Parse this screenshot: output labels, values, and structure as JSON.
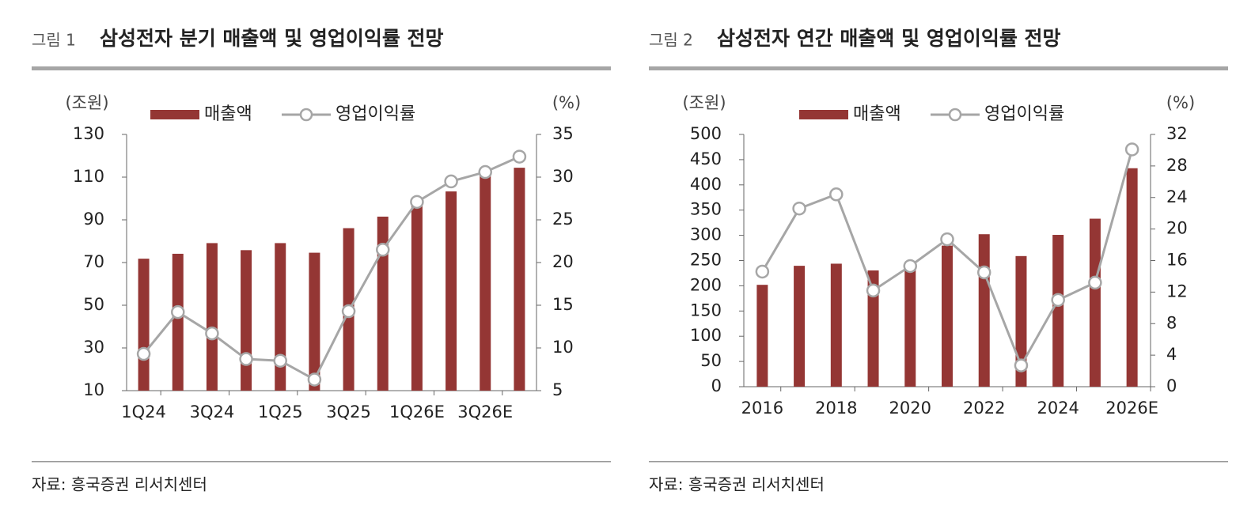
{
  "chart_data": [
    {
      "type": "bar-line",
      "figure_label": "그림 1",
      "title": "삼성전자 분기 매출액 및 영업이익률 전망",
      "y_label": "(조원)",
      "y2_label": "(%)",
      "categories": [
        "1Q24",
        null,
        "3Q24",
        null,
        "1Q25",
        null,
        "3Q25",
        null,
        "1Q26E",
        null,
        "3Q26E",
        null
      ],
      "series": [
        {
          "name": "매출액",
          "type": "bar",
          "color": "#943634",
          "values": [
            71.8,
            74.1,
            79.1,
            75.8,
            79.1,
            74.6,
            86.1,
            91.5,
            97.5,
            103.3,
            110.7,
            114.4
          ]
        },
        {
          "name": "영업이익률",
          "type": "line",
          "axis": "y2",
          "color": "#a6a6a6",
          "values": [
            9.3,
            14.2,
            11.7,
            8.7,
            8.5,
            6.3,
            14.3,
            21.5,
            27.1,
            29.5,
            30.6,
            32.4
          ]
        }
      ],
      "ylim": [
        10,
        130
      ],
      "yticks": [
        10,
        30,
        50,
        70,
        90,
        110,
        130
      ],
      "y2lim": [
        5,
        35
      ],
      "y2ticks": [
        5,
        10,
        15,
        20,
        25,
        30,
        35
      ],
      "source": "자료: 흥국증권 리서치센터"
    },
    {
      "type": "bar-line",
      "figure_label": "그림 2",
      "title": "삼성전자 연간 매출액 및 영업이익률 전망",
      "y_label": "(조원)",
      "y2_label": "(%)",
      "categories": [
        "2016",
        null,
        "2018",
        null,
        "2020",
        null,
        "2022",
        null,
        "2024",
        null,
        "2026E"
      ],
      "series": [
        {
          "name": "매출액",
          "type": "bar",
          "color": "#943634",
          "values": [
            201.9,
            239.6,
            243.8,
            230.4,
            236.8,
            279.6,
            302.2,
            258.9,
            300.9,
            333,
            433
          ]
        },
        {
          "name": "영업이익률",
          "type": "line",
          "axis": "y2",
          "color": "#a6a6a6",
          "values": [
            14.6,
            22.6,
            24.4,
            12.2,
            15.3,
            18.7,
            14.5,
            2.7,
            11.0,
            13.2,
            30.1
          ]
        }
      ],
      "ylim": [
        0,
        500
      ],
      "yticks": [
        0,
        50,
        100,
        150,
        200,
        250,
        300,
        350,
        400,
        450,
        500
      ],
      "y2lim": [
        0,
        32
      ],
      "y2ticks": [
        0,
        4,
        8,
        12,
        16,
        20,
        24,
        28,
        32
      ],
      "source": "자료: 흥국증권 리서치센터"
    }
  ]
}
